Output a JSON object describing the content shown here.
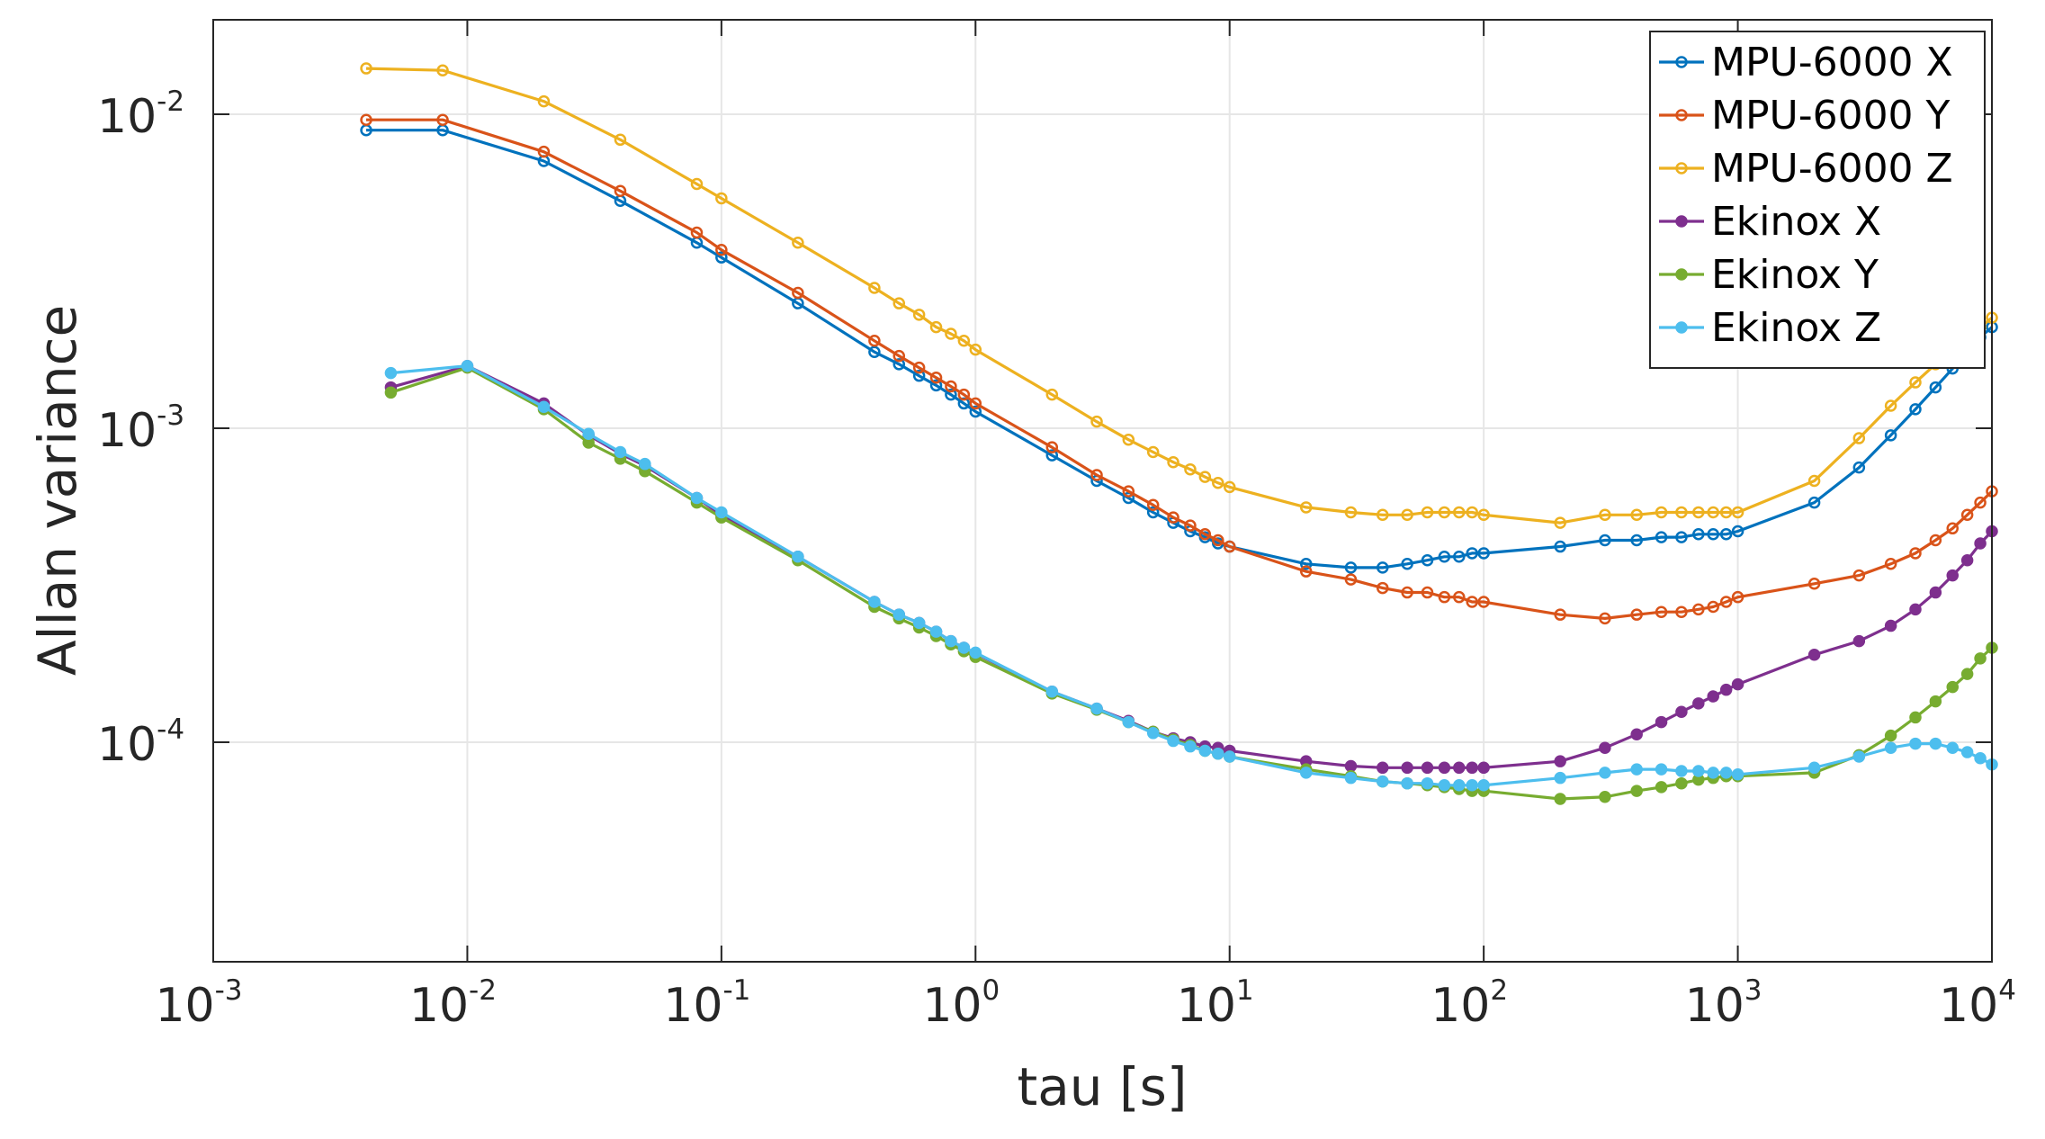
{
  "chart_data": {
    "type": "line",
    "title": "",
    "xlabel": "tau [s]",
    "ylabel": "Allan variance",
    "xscale": "log",
    "yscale": "log",
    "xlim": [
      0.001,
      10000
    ],
    "ylim": [
      2e-05,
      0.02
    ],
    "grid": true,
    "legend_position": "top-right",
    "x_ticks": [
      {
        "value": 0.001,
        "base": "10",
        "exp": "-3"
      },
      {
        "value": 0.01,
        "base": "10",
        "exp": "-2"
      },
      {
        "value": 0.1,
        "base": "10",
        "exp": "-1"
      },
      {
        "value": 1,
        "base": "10",
        "exp": "0"
      },
      {
        "value": 10,
        "base": "10",
        "exp": "1"
      },
      {
        "value": 100,
        "base": "10",
        "exp": "2"
      },
      {
        "value": 1000,
        "base": "10",
        "exp": "3"
      },
      {
        "value": 10000,
        "base": "10",
        "exp": "4"
      }
    ],
    "y_ticks": [
      {
        "value": 0.0001,
        "base": "10",
        "exp": "-4"
      },
      {
        "value": 0.001,
        "base": "10",
        "exp": "-3"
      },
      {
        "value": 0.01,
        "base": "10",
        "exp": "-2"
      }
    ],
    "series": [
      {
        "name": "MPU-6000 X",
        "color": "#0072bd",
        "x": [
          0.004,
          0.008,
          0.02,
          0.04,
          0.08,
          0.1,
          0.2,
          0.4,
          0.5,
          0.6,
          0.7,
          0.8,
          0.9,
          1,
          2,
          3,
          4,
          5,
          6,
          7,
          8,
          9,
          10,
          20,
          30,
          40,
          50,
          60,
          70,
          80,
          90,
          100,
          200,
          300,
          400,
          500,
          600,
          700,
          800,
          900,
          1000,
          2000,
          3000,
          4000,
          5000,
          6000,
          7000,
          8000,
          9000,
          10000
        ],
        "y": [
          0.0089,
          0.0089,
          0.0071,
          0.0053,
          0.0039,
          0.0035,
          0.0025,
          0.00175,
          0.0016,
          0.00147,
          0.00137,
          0.00128,
          0.0012,
          0.00113,
          0.00082,
          0.00068,
          0.0006,
          0.00054,
          0.0005,
          0.00047,
          0.00045,
          0.00043,
          0.00042,
          0.00037,
          0.00036,
          0.00036,
          0.00037,
          0.00038,
          0.00039,
          0.00039,
          0.0004,
          0.0004,
          0.00042,
          0.00044,
          0.00044,
          0.00045,
          0.00045,
          0.00046,
          0.00046,
          0.00046,
          0.00047,
          0.00058,
          0.00075,
          0.00095,
          0.00115,
          0.00135,
          0.00155,
          0.00175,
          0.00195,
          0.0021
        ]
      },
      {
        "name": "MPU-6000 Y",
        "color": "#d95319",
        "x": [
          0.004,
          0.008,
          0.02,
          0.04,
          0.08,
          0.1,
          0.2,
          0.4,
          0.5,
          0.6,
          0.7,
          0.8,
          0.9,
          1,
          2,
          3,
          4,
          5,
          6,
          7,
          8,
          9,
          10,
          20,
          30,
          40,
          50,
          60,
          70,
          80,
          90,
          100,
          200,
          300,
          400,
          500,
          600,
          700,
          800,
          900,
          1000,
          2000,
          3000,
          4000,
          5000,
          6000,
          7000,
          8000,
          9000,
          10000
        ],
        "y": [
          0.0096,
          0.0096,
          0.0076,
          0.0057,
          0.0042,
          0.0037,
          0.0027,
          0.0019,
          0.0017,
          0.00156,
          0.00145,
          0.00136,
          0.00128,
          0.0012,
          0.00087,
          0.00071,
          0.00063,
          0.00057,
          0.00052,
          0.00049,
          0.00046,
          0.00044,
          0.00042,
          0.00035,
          0.00033,
          0.00031,
          0.0003,
          0.0003,
          0.00029,
          0.00029,
          0.00028,
          0.00028,
          0.000255,
          0.000248,
          0.000255,
          0.00026,
          0.00026,
          0.000265,
          0.00027,
          0.00028,
          0.00029,
          0.00032,
          0.00034,
          0.00037,
          0.0004,
          0.00044,
          0.00048,
          0.00053,
          0.00058,
          0.00063
        ]
      },
      {
        "name": "MPU-6000 Z",
        "color": "#edb120",
        "x": [
          0.004,
          0.008,
          0.02,
          0.04,
          0.08,
          0.1,
          0.2,
          0.4,
          0.5,
          0.6,
          0.7,
          0.8,
          0.9,
          1,
          2,
          3,
          4,
          5,
          6,
          7,
          8,
          9,
          10,
          20,
          30,
          40,
          50,
          60,
          70,
          80,
          90,
          100,
          200,
          300,
          400,
          500,
          600,
          700,
          800,
          900,
          1000,
          2000,
          3000,
          4000,
          5000,
          6000,
          7000,
          8000,
          9000,
          10000
        ],
        "y": [
          0.014,
          0.0138,
          0.011,
          0.0083,
          0.006,
          0.0054,
          0.0039,
          0.0028,
          0.0025,
          0.0023,
          0.0021,
          0.002,
          0.0019,
          0.00178,
          0.00128,
          0.00105,
          0.00092,
          0.00084,
          0.00078,
          0.00074,
          0.0007,
          0.00067,
          0.00065,
          0.00056,
          0.00054,
          0.00053,
          0.00053,
          0.00054,
          0.00054,
          0.00054,
          0.00054,
          0.00053,
          0.0005,
          0.00053,
          0.00053,
          0.00054,
          0.00054,
          0.00054,
          0.00054,
          0.00054,
          0.00054,
          0.00068,
          0.00093,
          0.00118,
          0.0014,
          0.0016,
          0.00178,
          0.00195,
          0.0021,
          0.00225
        ]
      },
      {
        "name": "Ekinox X",
        "color": "#7e2f8e",
        "x": [
          0.005,
          0.01,
          0.02,
          0.03,
          0.04,
          0.05,
          0.08,
          0.1,
          0.2,
          0.4,
          0.5,
          0.6,
          0.7,
          0.8,
          0.9,
          1,
          2,
          3,
          4,
          5,
          6,
          7,
          8,
          9,
          10,
          20,
          30,
          40,
          50,
          60,
          70,
          80,
          90,
          100,
          200,
          300,
          400,
          500,
          600,
          700,
          800,
          900,
          1000,
          2000,
          3000,
          4000,
          5000,
          6000,
          7000,
          8000,
          9000,
          10000
        ],
        "y": [
          0.00135,
          0.00158,
          0.0012,
          0.00095,
          0.00083,
          0.00076,
          0.0006,
          0.00053,
          0.00039,
          0.00028,
          0.000255,
          0.00024,
          0.000225,
          0.00021,
          0.0002,
          0.000192,
          0.000145,
          0.000128,
          0.000117,
          0.000108,
          0.000103,
          0.0001,
          9.7e-05,
          9.6e-05,
          9.4e-05,
          8.7e-05,
          8.4e-05,
          8.3e-05,
          8.3e-05,
          8.3e-05,
          8.3e-05,
          8.3e-05,
          8.3e-05,
          8.3e-05,
          8.7e-05,
          9.6e-05,
          0.000106,
          0.000116,
          0.000125,
          0.000133,
          0.00014,
          0.000147,
          0.000153,
          0.00019,
          0.00021,
          0.000235,
          0.000265,
          0.0003,
          0.00034,
          0.00038,
          0.00043,
          0.00047
        ]
      },
      {
        "name": "Ekinox Y",
        "color": "#77ac30",
        "x": [
          0.005,
          0.01,
          0.02,
          0.03,
          0.04,
          0.05,
          0.08,
          0.1,
          0.2,
          0.4,
          0.5,
          0.6,
          0.7,
          0.8,
          0.9,
          1,
          2,
          3,
          4,
          5,
          6,
          7,
          8,
          9,
          10,
          20,
          30,
          40,
          50,
          60,
          70,
          80,
          90,
          100,
          200,
          300,
          400,
          500,
          600,
          700,
          800,
          900,
          1000,
          2000,
          3000,
          4000,
          5000,
          6000,
          7000,
          8000,
          9000,
          10000
        ],
        "y": [
          0.0013,
          0.00156,
          0.00115,
          0.0009,
          0.0008,
          0.00073,
          0.00058,
          0.00052,
          0.00038,
          0.00027,
          0.000248,
          0.000232,
          0.000218,
          0.000205,
          0.000195,
          0.000187,
          0.000143,
          0.000127,
          0.000116,
          0.000108,
          0.000102,
          9.8e-05,
          9.4e-05,
          9.2e-05,
          9e-05,
          8.2e-05,
          7.8e-05,
          7.5e-05,
          7.4e-05,
          7.3e-05,
          7.2e-05,
          7.1e-05,
          7e-05,
          7e-05,
          6.6e-05,
          6.7e-05,
          7e-05,
          7.2e-05,
          7.4e-05,
          7.6e-05,
          7.7e-05,
          7.8e-05,
          7.8e-05,
          8e-05,
          9.1e-05,
          0.000105,
          0.00012,
          0.000135,
          0.00015,
          0.000165,
          0.000185,
          0.0002
        ]
      },
      {
        "name": "Ekinox Z",
        "color": "#4dbeee",
        "x": [
          0.005,
          0.01,
          0.02,
          0.03,
          0.04,
          0.05,
          0.08,
          0.1,
          0.2,
          0.4,
          0.5,
          0.6,
          0.7,
          0.8,
          0.9,
          1,
          2,
          3,
          4,
          5,
          6,
          7,
          8,
          9,
          10,
          20,
          30,
          40,
          50,
          60,
          70,
          80,
          90,
          100,
          200,
          300,
          400,
          500,
          600,
          700,
          800,
          900,
          1000,
          2000,
          3000,
          4000,
          5000,
          6000,
          7000,
          8000,
          9000,
          10000
        ],
        "y": [
          0.0015,
          0.00158,
          0.00117,
          0.00096,
          0.00084,
          0.00077,
          0.0006,
          0.00054,
          0.00039,
          0.00028,
          0.000255,
          0.00024,
          0.000225,
          0.00021,
          0.0002,
          0.000193,
          0.000145,
          0.000128,
          0.000116,
          0.000107,
          0.000101,
          9.7e-05,
          9.4e-05,
          9.2e-05,
          9e-05,
          8e-05,
          7.7e-05,
          7.5e-05,
          7.4e-05,
          7.4e-05,
          7.3e-05,
          7.3e-05,
          7.3e-05,
          7.3e-05,
          7.7e-05,
          8e-05,
          8.2e-05,
          8.2e-05,
          8.1e-05,
          8.1e-05,
          8e-05,
          8e-05,
          7.9e-05,
          8.3e-05,
          9e-05,
          9.6e-05,
          9.9e-05,
          9.9e-05,
          9.6e-05,
          9.3e-05,
          8.9e-05,
          8.5e-05
        ]
      }
    ]
  }
}
